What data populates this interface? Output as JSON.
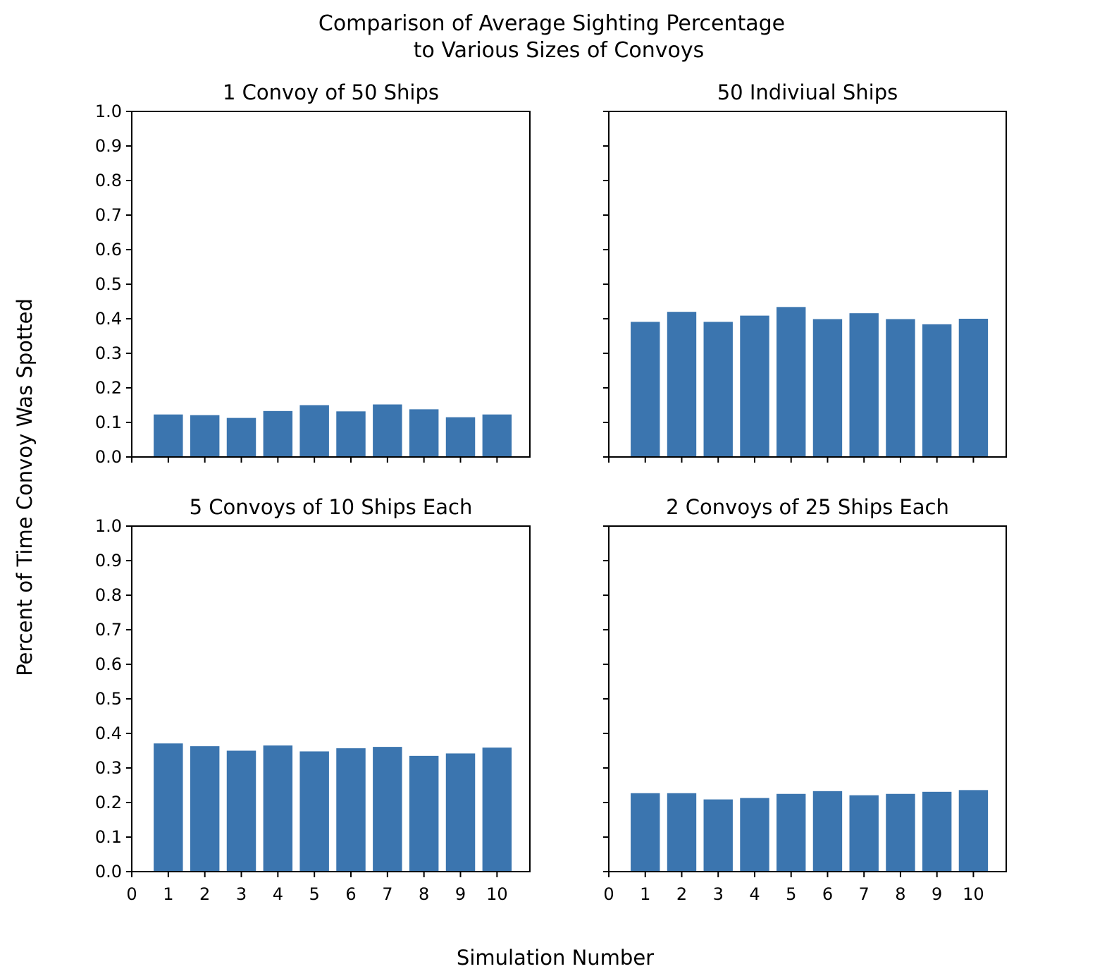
{
  "figure": {
    "title_line1": "Comparison of Average Sighting Percentage",
    "title_line2": "to Various Sizes of Convoys",
    "xlabel": "Simulation Number",
    "ylabel": "Percent of Time Convoy Was Spotted"
  },
  "colors": {
    "bar": "#3b75af"
  },
  "chart_data": [
    {
      "type": "bar",
      "title": "1 Convoy of 50 Ships",
      "x": [
        1,
        2,
        3,
        4,
        5,
        6,
        7,
        8,
        9,
        10
      ],
      "values": [
        0.123,
        0.121,
        0.113,
        0.133,
        0.15,
        0.132,
        0.152,
        0.138,
        0.115,
        0.123
      ],
      "ylim": [
        0,
        1.0
      ],
      "xlim": [
        0,
        10.9
      ],
      "yticks": [
        "0.0",
        "0.1",
        "0.2",
        "0.3",
        "0.4",
        "0.5",
        "0.6",
        "0.7",
        "0.8",
        "0.9",
        "1.0"
      ],
      "xticks": [],
      "show_yticklabels": true
    },
    {
      "type": "bar",
      "title": "50 Indiviual Ships",
      "x": [
        1,
        2,
        3,
        4,
        5,
        6,
        7,
        8,
        9,
        10
      ],
      "values": [
        0.391,
        0.42,
        0.391,
        0.409,
        0.434,
        0.399,
        0.416,
        0.399,
        0.384,
        0.4
      ],
      "ylim": [
        0,
        1.0
      ],
      "xlim": [
        0,
        10.9
      ],
      "yticks": [],
      "xticks": [],
      "show_yticklabels": false
    },
    {
      "type": "bar",
      "title": "5 Convoys of 10 Ships Each",
      "x": [
        1,
        2,
        3,
        4,
        5,
        6,
        7,
        8,
        9,
        10
      ],
      "values": [
        0.371,
        0.363,
        0.35,
        0.365,
        0.348,
        0.357,
        0.361,
        0.335,
        0.342,
        0.359
      ],
      "ylim": [
        0,
        1.0
      ],
      "xlim": [
        0,
        10.9
      ],
      "yticks": [
        "0.0",
        "0.1",
        "0.2",
        "0.3",
        "0.4",
        "0.5",
        "0.6",
        "0.7",
        "0.8",
        "0.9",
        "1.0"
      ],
      "xticks": [
        "0",
        "1",
        "2",
        "3",
        "4",
        "5",
        "6",
        "7",
        "8",
        "9",
        "10"
      ],
      "show_yticklabels": true
    },
    {
      "type": "bar",
      "title": "2 Convoys of 25 Ships Each",
      "x": [
        1,
        2,
        3,
        4,
        5,
        6,
        7,
        8,
        9,
        10
      ],
      "values": [
        0.227,
        0.227,
        0.209,
        0.213,
        0.225,
        0.233,
        0.221,
        0.225,
        0.231,
        0.236
      ],
      "ylim": [
        0,
        1.0
      ],
      "xlim": [
        0,
        10.9
      ],
      "yticks": [],
      "xticks": [
        "0",
        "1",
        "2",
        "3",
        "4",
        "5",
        "6",
        "7",
        "8",
        "9",
        "10"
      ],
      "show_yticklabels": false
    }
  ]
}
